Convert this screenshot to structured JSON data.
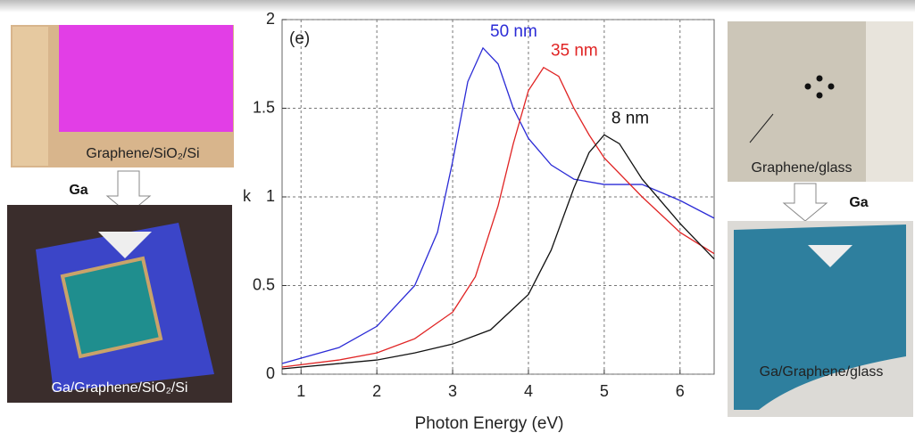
{
  "chart_data": {
    "type": "line",
    "annotation": "(e)",
    "x_label": "Photon Energy (eV)",
    "y_label": "k",
    "xlim": [
      0.75,
      6.45
    ],
    "ylim": [
      0,
      2
    ],
    "xticks": [
      1,
      2,
      3,
      4,
      5,
      6
    ],
    "yticks": [
      0,
      0.5,
      1,
      1.5,
      2
    ],
    "grid": true,
    "series": [
      {
        "name": "50 nm",
        "color": "#2b2bd6",
        "x": [
          0.75,
          1.5,
          2,
          2.5,
          2.8,
          3.0,
          3.2,
          3.4,
          3.6,
          3.8,
          4.0,
          4.3,
          4.6,
          5.0,
          5.5,
          6.0,
          6.45
        ],
        "values": [
          0.06,
          0.15,
          0.27,
          0.5,
          0.8,
          1.2,
          1.65,
          1.84,
          1.75,
          1.5,
          1.33,
          1.18,
          1.1,
          1.07,
          1.07,
          0.98,
          0.88
        ]
      },
      {
        "name": "35 nm",
        "color": "#e02424",
        "x": [
          0.75,
          1.5,
          2,
          2.5,
          3,
          3.3,
          3.6,
          3.8,
          4.0,
          4.2,
          4.4,
          4.6,
          4.8,
          5.0,
          5.5,
          6.0,
          6.45
        ],
        "values": [
          0.04,
          0.08,
          0.12,
          0.2,
          0.35,
          0.55,
          0.95,
          1.3,
          1.6,
          1.73,
          1.68,
          1.5,
          1.35,
          1.22,
          1.0,
          0.8,
          0.68
        ]
      },
      {
        "name": "8 nm",
        "color": "#111111",
        "x": [
          0.75,
          1.5,
          2,
          2.5,
          3,
          3.5,
          4.0,
          4.3,
          4.6,
          4.8,
          5.0,
          5.2,
          5.5,
          6.0,
          6.45
        ],
        "values": [
          0.03,
          0.06,
          0.08,
          0.12,
          0.17,
          0.25,
          0.45,
          0.7,
          1.05,
          1.25,
          1.35,
          1.3,
          1.1,
          0.85,
          0.65
        ]
      }
    ]
  },
  "panels": {
    "left": {
      "top_label": "Graphene/SiO₂/Si",
      "arrow_label": "Ga",
      "bottom_label": "Ga/Graphene/SiO₂/Si"
    },
    "right": {
      "top_label": "Graphene/glass",
      "arrow_label": "Ga",
      "bottom_label": "Ga/Graphene/glass"
    }
  }
}
